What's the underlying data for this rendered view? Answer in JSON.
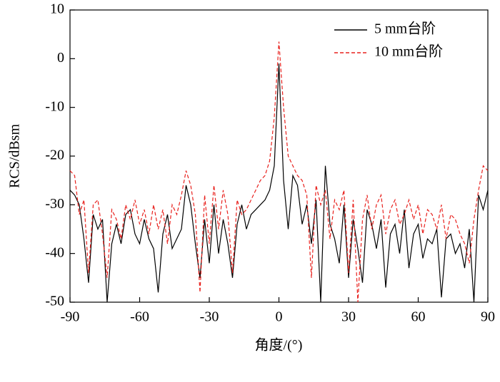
{
  "chart_data": {
    "type": "line",
    "xlabel": "角度/(°)",
    "ylabel": "RCS/dBsm",
    "x": [
      -90,
      -88,
      -86,
      -84,
      -82,
      -80,
      -78,
      -76,
      -74,
      -72,
      -70,
      -68,
      -66,
      -64,
      -62,
      -60,
      -58,
      -56,
      -54,
      -52,
      -50,
      -48,
      -46,
      -44,
      -42,
      -40,
      -38,
      -36,
      -34,
      -32,
      -30,
      -28,
      -26,
      -24,
      -22,
      -20,
      -18,
      -16,
      -14,
      -12,
      -10,
      -8,
      -6,
      -4,
      -2,
      0,
      2,
      4,
      6,
      8,
      10,
      12,
      14,
      16,
      18,
      20,
      22,
      24,
      26,
      28,
      30,
      32,
      34,
      36,
      38,
      40,
      42,
      44,
      46,
      48,
      50,
      52,
      54,
      56,
      58,
      60,
      62,
      64,
      66,
      68,
      70,
      72,
      74,
      76,
      78,
      80,
      82,
      84,
      86,
      88,
      90
    ],
    "series": [
      {
        "name": "5 mm台阶",
        "color": "#000000",
        "dash": false,
        "values": [
          -27,
          -28,
          -30,
          -37,
          -46,
          -32,
          -35,
          -33,
          -50,
          -38,
          -34,
          -38,
          -32,
          -31,
          -36,
          -38,
          -33,
          -37,
          -39,
          -48,
          -36,
          -32,
          -39,
          -37,
          -35,
          -26,
          -30,
          -38,
          -45,
          -33,
          -42,
          -30,
          -40,
          -33,
          -38,
          -45,
          -34,
          -30,
          -35,
          -32,
          -31,
          -30,
          -29,
          -27,
          -22,
          -1,
          -25,
          -35,
          -24,
          -26,
          -34,
          -30,
          -38,
          -29,
          -50,
          -22,
          -34,
          -37,
          -42,
          -30,
          -45,
          -33,
          -39,
          -46,
          -31,
          -34,
          -39,
          -33,
          -47,
          -36,
          -34,
          -40,
          -31,
          -43,
          -36,
          -34,
          -41,
          -37,
          -38,
          -35,
          -49,
          -37,
          -36,
          -40,
          -38,
          -43,
          -35,
          -50,
          -28,
          -31,
          -27
        ]
      },
      {
        "name": "10 mm台阶",
        "color": "#e8211d",
        "dash": true,
        "values": [
          -23,
          -24,
          -32,
          -29,
          -44,
          -30,
          -29,
          -36,
          -45,
          -31,
          -33,
          -37,
          -30,
          -33,
          -29,
          -34,
          -31,
          -36,
          -30,
          -35,
          -31,
          -38,
          -30,
          -32,
          -28,
          -23,
          -26,
          -32,
          -48,
          -28,
          -38,
          -26,
          -35,
          -27,
          -32,
          -44,
          -29,
          -32,
          -31,
          -29,
          -27,
          -25,
          -24,
          -21,
          -12,
          3.5,
          -10,
          -20,
          -22,
          -24,
          -25,
          -28,
          -45,
          -26,
          -30,
          -27,
          -37,
          -29,
          -31,
          -27,
          -44,
          -29,
          -50,
          -33,
          -28,
          -35,
          -30,
          -28,
          -36,
          -31,
          -29,
          -34,
          -32,
          -29,
          -33,
          -30,
          -36,
          -31,
          -32,
          -35,
          -30,
          -37,
          -32,
          -33,
          -36,
          -38,
          -42,
          -33,
          -27,
          -22,
          -23
        ]
      }
    ],
    "xlim": [
      -90,
      90
    ],
    "xticks": [
      -90,
      -60,
      -30,
      0,
      30,
      60,
      90
    ],
    "ylim": [
      -50,
      10
    ],
    "yticks": [
      -50,
      -40,
      -30,
      -20,
      -10,
      0,
      10
    ],
    "legend": "upper right"
  }
}
